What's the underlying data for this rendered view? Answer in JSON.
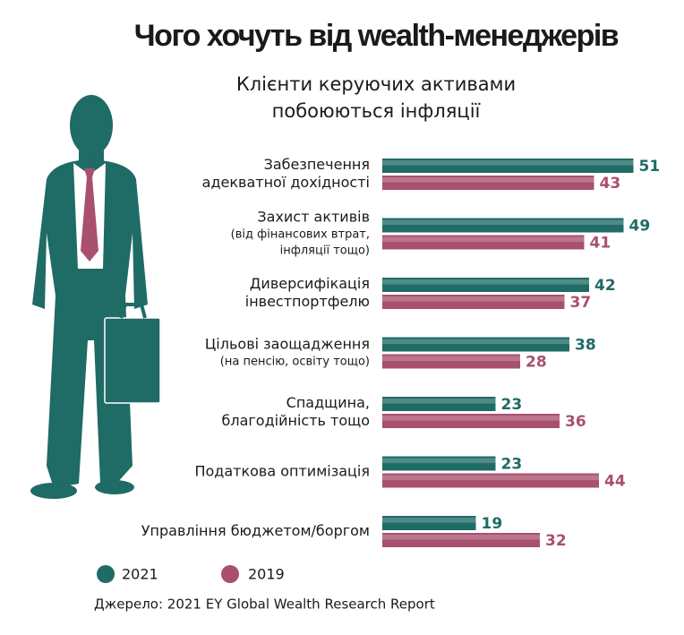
{
  "chart_data": {
    "type": "hbar",
    "title": "Чого хочуть від wealth-менеджерів",
    "subtitle": [
      "Клієнти керуючих активами",
      "побоюються інфляції"
    ],
    "categories": [
      [
        "Забезпечення",
        "адекватної дохідності"
      ],
      [
        "Захист активів"
      ],
      [
        "Диверсифікація",
        "інвестпортфелю"
      ],
      [
        "Цільові заощадження"
      ],
      [
        "Спадщина,",
        "благодійність тощо"
      ],
      [
        "Податкова оптимізація"
      ],
      [
        "Управління бюджетом/боргом"
      ]
    ],
    "category_notes": [
      null,
      [
        "(від фінансових втрат,",
        "інфляції тощо)"
      ],
      null,
      [
        "(на пенсію, освіту тощо)"
      ],
      null,
      null,
      null
    ],
    "series": [
      {
        "name": "2021",
        "color": "#1f6b66",
        "values": [
          51,
          49,
          42,
          38,
          23,
          23,
          19
        ]
      },
      {
        "name": "2019",
        "color": "#a8506e",
        "values": [
          43,
          41,
          37,
          28,
          36,
          44,
          32
        ]
      }
    ],
    "source": "Джерело: 2021 EY Global Wealth Research Report"
  }
}
